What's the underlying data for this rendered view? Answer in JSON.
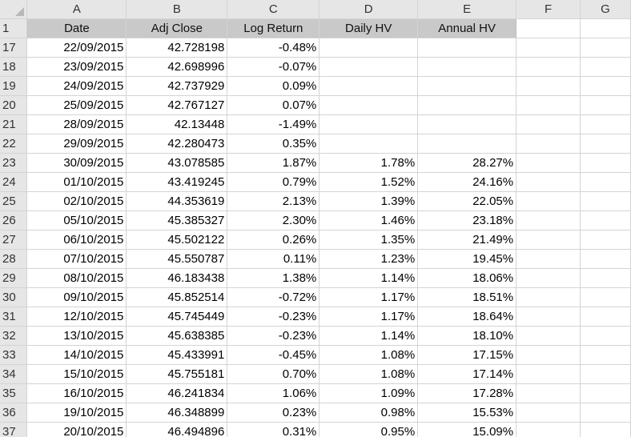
{
  "columns": [
    "A",
    "B",
    "C",
    "D",
    "E",
    "F",
    "G"
  ],
  "header_row": {
    "row_number": "1",
    "cells": [
      "Date",
      "Adj Close",
      "Log Return",
      "Daily HV",
      "Annual HV",
      "",
      ""
    ]
  },
  "rows": [
    {
      "n": "17",
      "date": "22/09/2015",
      "adj": "42.728198",
      "logret": "-0.48%",
      "dhv": "",
      "ahv": ""
    },
    {
      "n": "18",
      "date": "23/09/2015",
      "adj": "42.698996",
      "logret": "-0.07%",
      "dhv": "",
      "ahv": ""
    },
    {
      "n": "19",
      "date": "24/09/2015",
      "adj": "42.737929",
      "logret": "0.09%",
      "dhv": "",
      "ahv": ""
    },
    {
      "n": "20",
      "date": "25/09/2015",
      "adj": "42.767127",
      "logret": "0.07%",
      "dhv": "",
      "ahv": ""
    },
    {
      "n": "21",
      "date": "28/09/2015",
      "adj": "42.13448",
      "logret": "-1.49%",
      "dhv": "",
      "ahv": ""
    },
    {
      "n": "22",
      "date": "29/09/2015",
      "adj": "42.280473",
      "logret": "0.35%",
      "dhv": "",
      "ahv": ""
    },
    {
      "n": "23",
      "date": "30/09/2015",
      "adj": "43.078585",
      "logret": "1.87%",
      "dhv": "1.78%",
      "ahv": "28.27%"
    },
    {
      "n": "24",
      "date": "01/10/2015",
      "adj": "43.419245",
      "logret": "0.79%",
      "dhv": "1.52%",
      "ahv": "24.16%"
    },
    {
      "n": "25",
      "date": "02/10/2015",
      "adj": "44.353619",
      "logret": "2.13%",
      "dhv": "1.39%",
      "ahv": "22.05%"
    },
    {
      "n": "26",
      "date": "05/10/2015",
      "adj": "45.385327",
      "logret": "2.30%",
      "dhv": "1.46%",
      "ahv": "23.18%"
    },
    {
      "n": "27",
      "date": "06/10/2015",
      "adj": "45.502122",
      "logret": "0.26%",
      "dhv": "1.35%",
      "ahv": "21.49%"
    },
    {
      "n": "28",
      "date": "07/10/2015",
      "adj": "45.550787",
      "logret": "0.11%",
      "dhv": "1.23%",
      "ahv": "19.45%"
    },
    {
      "n": "29",
      "date": "08/10/2015",
      "adj": "46.183438",
      "logret": "1.38%",
      "dhv": "1.14%",
      "ahv": "18.06%"
    },
    {
      "n": "30",
      "date": "09/10/2015",
      "adj": "45.852514",
      "logret": "-0.72%",
      "dhv": "1.17%",
      "ahv": "18.51%"
    },
    {
      "n": "31",
      "date": "12/10/2015",
      "adj": "45.745449",
      "logret": "-0.23%",
      "dhv": "1.17%",
      "ahv": "18.64%"
    },
    {
      "n": "32",
      "date": "13/10/2015",
      "adj": "45.638385",
      "logret": "-0.23%",
      "dhv": "1.14%",
      "ahv": "18.10%"
    },
    {
      "n": "33",
      "date": "14/10/2015",
      "adj": "45.433991",
      "logret": "-0.45%",
      "dhv": "1.08%",
      "ahv": "17.15%"
    },
    {
      "n": "34",
      "date": "15/10/2015",
      "adj": "45.755181",
      "logret": "0.70%",
      "dhv": "1.08%",
      "ahv": "17.14%"
    },
    {
      "n": "35",
      "date": "16/10/2015",
      "adj": "46.241834",
      "logret": "1.06%",
      "dhv": "1.09%",
      "ahv": "17.28%"
    },
    {
      "n": "36",
      "date": "19/10/2015",
      "adj": "46.348899",
      "logret": "0.23%",
      "dhv": "0.98%",
      "ahv": "15.53%"
    },
    {
      "n": "37",
      "date": "20/10/2015",
      "adj": "46.494896",
      "logret": "0.31%",
      "dhv": "0.95%",
      "ahv": "15.09%"
    }
  ],
  "colors": {
    "column_header_bg": "#e6e6e6",
    "table_header_fill": "#c9c9c9",
    "gridline": "#d4d4d4"
  },
  "icons": {
    "corner": "select-all-triangle-icon"
  }
}
